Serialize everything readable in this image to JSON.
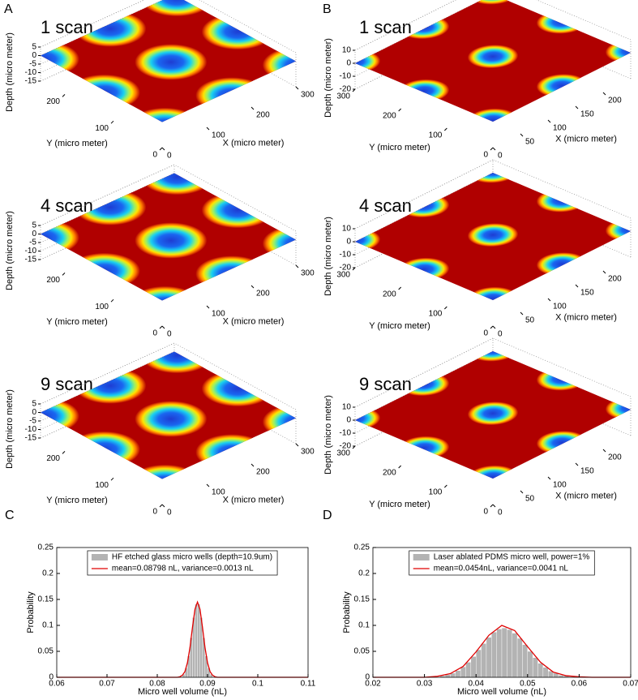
{
  "chart_data": [
    {
      "type": "surface",
      "panel": "A",
      "title": "1 scan",
      "xlabel": "X (micro meter)",
      "ylabel": "Y (micro meter)",
      "zlabel": "Depth (micro meter)",
      "xlim": [
        0,
        300
      ],
      "ylim": [
        0,
        250
      ],
      "zlim": [
        -15,
        5
      ],
      "xticks": [
        0,
        100,
        200,
        300
      ],
      "yticks": [
        0,
        100,
        200
      ],
      "zticks": [
        5,
        0,
        -5,
        -10,
        -15
      ],
      "colormap": "jet"
    },
    {
      "type": "surface",
      "title": "4 scan",
      "xlabel": "X (micro meter)",
      "ylabel": "Y (micro meter)",
      "zlabel": "Depth (micro meter)",
      "xlim": [
        0,
        300
      ],
      "ylim": [
        0,
        250
      ],
      "zlim": [
        -15,
        5
      ],
      "xticks": [
        0,
        100,
        200,
        300
      ],
      "yticks": [
        0,
        100,
        200
      ],
      "zticks": [
        5,
        0,
        -5,
        -10,
        -15
      ],
      "colormap": "jet"
    },
    {
      "type": "surface",
      "title": "9 scan",
      "xlabel": "X (micro meter)",
      "ylabel": "Y (micro meter)",
      "zlabel": "Depth (micro meter)",
      "xlim": [
        0,
        300
      ],
      "ylim": [
        0,
        250
      ],
      "zlim": [
        -15,
        5
      ],
      "xticks": [
        0,
        100,
        200,
        300
      ],
      "yticks": [
        0,
        100,
        200
      ],
      "zticks": [
        5,
        0,
        -5,
        -10,
        -15
      ],
      "colormap": "jet"
    },
    {
      "type": "surface",
      "panel": "B",
      "title": "1 scan",
      "xlabel": "X (micro meter)",
      "ylabel": "Y (micro meter)",
      "zlabel": "Depth (micro meter)",
      "xlim": [
        0,
        250
      ],
      "ylim": [
        0,
        300
      ],
      "zlim": [
        -20,
        10
      ],
      "xticks": [
        0,
        50,
        100,
        150,
        200
      ],
      "yticks": [
        0,
        100,
        200,
        300
      ],
      "zticks": [
        10,
        0,
        -10,
        -20
      ],
      "colormap": "jet"
    },
    {
      "type": "surface",
      "title": "4 scan",
      "xlabel": "X (micro meter)",
      "ylabel": "Y (micro meter)",
      "zlabel": "Depth (micro meter)",
      "xlim": [
        0,
        250
      ],
      "ylim": [
        0,
        300
      ],
      "zlim": [
        -20,
        10
      ],
      "xticks": [
        0,
        50,
        100,
        150,
        200
      ],
      "yticks": [
        0,
        100,
        200,
        300
      ],
      "zticks": [
        10,
        0,
        -10,
        -20
      ],
      "colormap": "jet"
    },
    {
      "type": "surface",
      "title": "9 scan",
      "xlabel": "X (micro meter)",
      "ylabel": "Y (micro meter)",
      "zlabel": "Depth (micro meter)",
      "xlim": [
        0,
        250
      ],
      "ylim": [
        0,
        300
      ],
      "zlim": [
        -20,
        10
      ],
      "xticks": [
        0,
        50,
        100,
        150,
        200
      ],
      "yticks": [
        0,
        100,
        200,
        300
      ],
      "zticks": [
        10,
        0,
        -10,
        -20
      ],
      "colormap": "jet"
    },
    {
      "type": "histogram",
      "panel": "C",
      "xlabel": "Micro well volume (nL)",
      "ylabel": "Probability",
      "name": "HF etched glass micro wells (depth=10.9um)",
      "color": "#b3b3b3",
      "bins": [
        0.085,
        0.0855,
        0.086,
        0.0865,
        0.087,
        0.0875,
        0.088,
        0.0885,
        0.089,
        0.0895,
        0.09,
        0.0905,
        0.091
      ],
      "counts": [
        0.006,
        0.018,
        0.041,
        0.076,
        0.115,
        0.141,
        0.141,
        0.115,
        0.076,
        0.041,
        0.018,
        0.006
      ],
      "series": [
        {
          "name": "mean=0.08798 nL, variance=0.0013 nL",
          "color": "#e00000",
          "x": [
            0.06,
            0.084,
            0.0845,
            0.085,
            0.0855,
            0.086,
            0.0865,
            0.087,
            0.0875,
            0.088,
            0.0885,
            0.089,
            0.0895,
            0.09,
            0.0905,
            0.091,
            0.0915,
            0.092,
            0.11
          ],
          "values": [
            0,
            0,
            0.001,
            0.004,
            0.011,
            0.028,
            0.057,
            0.096,
            0.131,
            0.145,
            0.131,
            0.096,
            0.057,
            0.028,
            0.011,
            0.004,
            0.001,
            0,
            0
          ]
        }
      ],
      "xlim": [
        0.06,
        0.11
      ],
      "ylim": [
        0,
        0.25
      ],
      "xticks": [
        0.06,
        0.07,
        0.08,
        0.09,
        0.1,
        0.11
      ],
      "yticks": [
        0,
        0.05,
        0.1,
        0.15,
        0.2,
        0.25
      ]
    },
    {
      "type": "histogram",
      "panel": "D",
      "xlabel": "Micro well volume (nL)",
      "ylabel": "Probability",
      "name": "Laser ablated PDMS micro well, power=1%",
      "color": "#b3b3b3",
      "bins": [
        0.033,
        0.034,
        0.035,
        0.036,
        0.037,
        0.038,
        0.039,
        0.04,
        0.041,
        0.042,
        0.043,
        0.044,
        0.045,
        0.046,
        0.047,
        0.048,
        0.049,
        0.05,
        0.051,
        0.052,
        0.053,
        0.054,
        0.055,
        0.056,
        0.057,
        0.058
      ],
      "counts": [
        0.003,
        0.005,
        0.008,
        0.013,
        0.02,
        0.029,
        0.04,
        0.053,
        0.065,
        0.077,
        0.087,
        0.093,
        0.095,
        0.092,
        0.085,
        0.075,
        0.063,
        0.05,
        0.038,
        0.027,
        0.019,
        0.012,
        0.008,
        0.004,
        0.003
      ],
      "series": [
        {
          "name": "mean=0.0454nL, variance=0.0041 nL",
          "color": "#e00000",
          "x": [
            0.02,
            0.025,
            0.0275,
            0.03,
            0.0325,
            0.035,
            0.0375,
            0.04,
            0.0425,
            0.045,
            0.0475,
            0.05,
            0.0525,
            0.055,
            0.0575,
            0.06,
            0.0625,
            0.065,
            0.07
          ],
          "values": [
            0,
            0,
            0,
            0,
            0.002,
            0.007,
            0.021,
            0.049,
            0.081,
            0.1,
            0.09,
            0.059,
            0.029,
            0.01,
            0.003,
            0.001,
            0,
            0,
            0
          ]
        }
      ],
      "xlim": [
        0.02,
        0.07
      ],
      "ylim": [
        0,
        0.25
      ],
      "xticks": [
        0.02,
        0.03,
        0.04,
        0.05,
        0.06,
        0.07
      ],
      "yticks": [
        0,
        0.05,
        0.1,
        0.15,
        0.2,
        0.25
      ]
    }
  ]
}
